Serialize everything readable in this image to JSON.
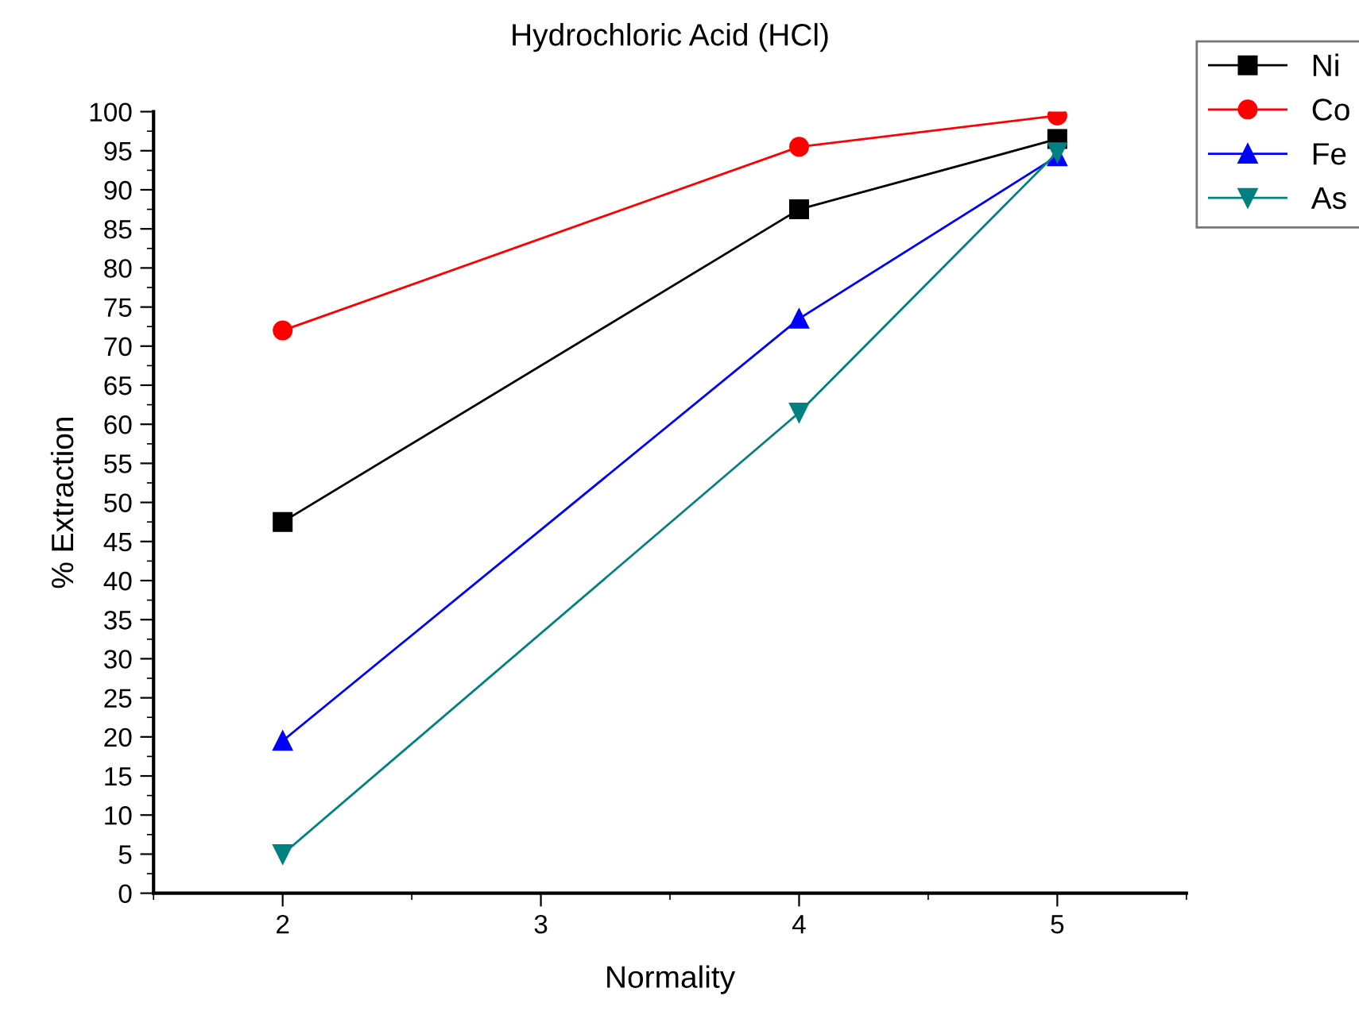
{
  "chart_data": {
    "type": "line",
    "title": "Hydrochloric Acid (HCl)",
    "xlabel": "Normality",
    "ylabel": "% Extraction",
    "x": [
      2,
      4,
      5
    ],
    "series": [
      {
        "name": "Ni",
        "color": "#000000",
        "marker": "square",
        "values": [
          47.5,
          87.5,
          96.5
        ]
      },
      {
        "name": "Co",
        "color": "#ff0000",
        "marker": "circle",
        "values": [
          72,
          95.5,
          99.5
        ]
      },
      {
        "name": "Fe",
        "color": "#0000ff",
        "marker": "triangle",
        "values": [
          19.5,
          73.5,
          94.3
        ]
      },
      {
        "name": "As",
        "color": "#008080",
        "marker": "triangle_down",
        "values": [
          5,
          61.5,
          94.8
        ]
      }
    ],
    "xlim": [
      1.5,
      5.5
    ],
    "xticks": [
      2,
      3,
      4,
      5
    ],
    "ylim": [
      0,
      100
    ],
    "yticks": [
      0,
      5,
      10,
      15,
      20,
      25,
      30,
      35,
      40,
      45,
      50,
      55,
      60,
      65,
      70,
      75,
      80,
      85,
      90,
      95,
      100
    ],
    "grid": false,
    "legend": "top right",
    "line_style": "solid"
  }
}
